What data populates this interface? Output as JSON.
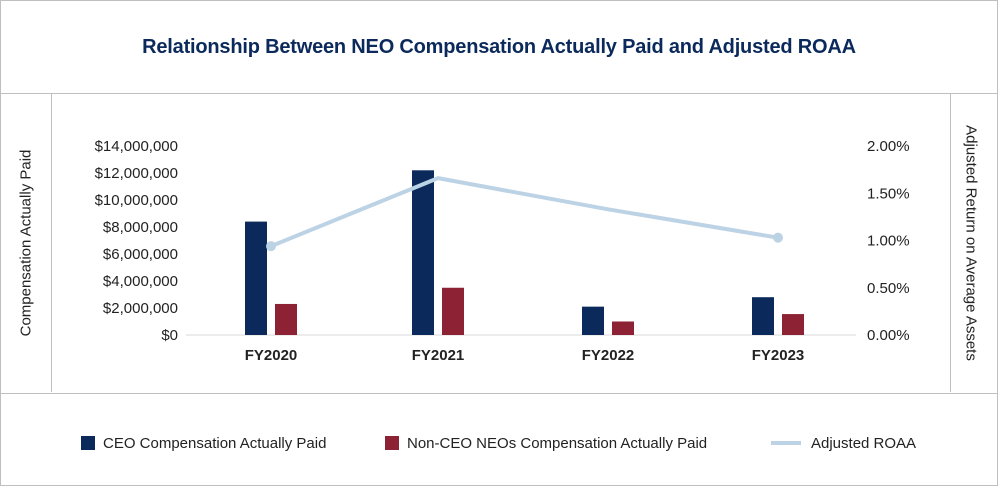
{
  "chart_data": {
    "type": "bar",
    "title": "Relationship Between NEO Compensation Actually Paid and Adjusted ROAA",
    "categories": [
      "FY2020",
      "FY2021",
      "FY2022",
      "FY2023"
    ],
    "ylabel": "Compensation Actually Paid",
    "ylim": [
      0,
      14000000
    ],
    "y_ticks": [
      "$14,000,000",
      "$12,000,000",
      "$10,000,000",
      "$8,000,000",
      "$6,000,000",
      "$4,000,000",
      "$2,000,000",
      "$0"
    ],
    "y2label": "Adjusted Return on Average Assets",
    "y2lim": [
      0,
      2
    ],
    "y2_ticks": [
      "2.00%",
      "1.50%",
      "1.00%",
      "0.50%",
      "0.00%"
    ],
    "series": [
      {
        "name": "CEO Compensation Actually Paid",
        "kind": "bar",
        "axis": "left",
        "color": "#0b2a5b",
        "values": [
          8400000,
          12200000,
          2100000,
          2800000
        ]
      },
      {
        "name": "Non-CEO NEOs Compensation Actually Paid",
        "kind": "bar",
        "axis": "left",
        "color": "#8c2234",
        "values": [
          2300000,
          3500000,
          1000000,
          1550000
        ]
      },
      {
        "name": "Adjusted ROAA",
        "kind": "line",
        "axis": "right",
        "color": "#bcd3e6",
        "values": [
          0.94,
          1.66,
          1.33,
          1.03
        ]
      }
    ],
    "grid": false,
    "legend_position": "bottom"
  },
  "legend": {
    "ceo": "CEO Compensation Actually Paid",
    "neo": "Non-CEO NEOs Compensation Actually Paid",
    "roaa": "Adjusted ROAA"
  }
}
